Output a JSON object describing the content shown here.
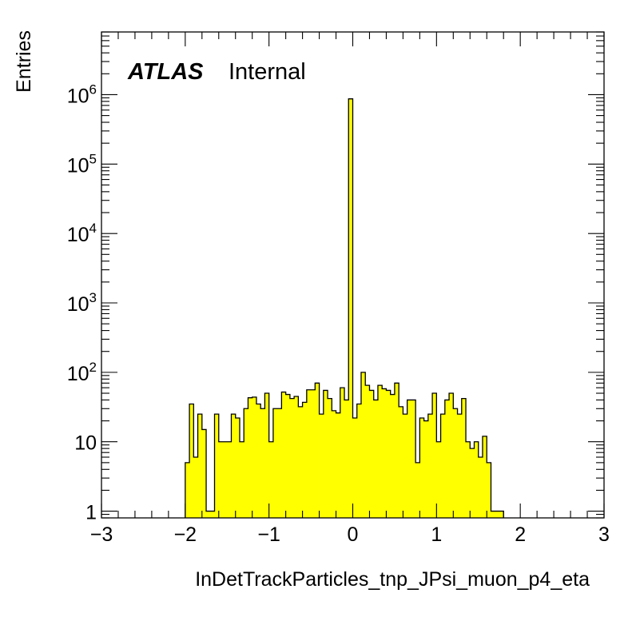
{
  "chart_data": {
    "type": "histogram",
    "xlabel": "InDetTrackParticles_tnp_JPsi_muon_p4_eta",
    "ylabel": "Entries",
    "xlim": [
      -3,
      3
    ],
    "ylim": [
      0.8,
      8000000
    ],
    "yscale": "log",
    "grid": false,
    "fill_color": "#ffff00",
    "line_color": "#000000",
    "bin_width": 0.05,
    "x_ticks": [
      {
        "value": -3,
        "label": "−3"
      },
      {
        "value": -2,
        "label": "−2"
      },
      {
        "value": -1,
        "label": "−1"
      },
      {
        "value": 0,
        "label": "0"
      },
      {
        "value": 1,
        "label": "1"
      },
      {
        "value": 2,
        "label": "2"
      },
      {
        "value": 3,
        "label": "3"
      }
    ],
    "y_ticks": [
      {
        "value": 1,
        "base": "1",
        "exp": ""
      },
      {
        "value": 10,
        "base": "10",
        "exp": ""
      },
      {
        "value": 100,
        "base": "10",
        "exp": "2"
      },
      {
        "value": 1000,
        "base": "10",
        "exp": "3"
      },
      {
        "value": 10000,
        "base": "10",
        "exp": "4"
      },
      {
        "value": 100000,
        "base": "10",
        "exp": "5"
      },
      {
        "value": 1000000,
        "base": "10",
        "exp": "6"
      }
    ],
    "bins": [
      {
        "x": -2.0,
        "y": 5
      },
      {
        "x": -1.95,
        "y": 35
      },
      {
        "x": -1.9,
        "y": 6
      },
      {
        "x": -1.85,
        "y": 25
      },
      {
        "x": -1.8,
        "y": 15
      },
      {
        "x": -1.75,
        "y": 1
      },
      {
        "x": -1.7,
        "y": 1
      },
      {
        "x": -1.65,
        "y": 25
      },
      {
        "x": -1.6,
        "y": 10
      },
      {
        "x": -1.55,
        "y": 10
      },
      {
        "x": -1.5,
        "y": 10
      },
      {
        "x": -1.45,
        "y": 25
      },
      {
        "x": -1.4,
        "y": 22
      },
      {
        "x": -1.35,
        "y": 10
      },
      {
        "x": -1.3,
        "y": 30
      },
      {
        "x": -1.25,
        "y": 43
      },
      {
        "x": -1.2,
        "y": 44
      },
      {
        "x": -1.15,
        "y": 35
      },
      {
        "x": -1.1,
        "y": 30
      },
      {
        "x": -1.05,
        "y": 50
      },
      {
        "x": -1.0,
        "y": 10
      },
      {
        "x": -0.95,
        "y": 30
      },
      {
        "x": -0.9,
        "y": 30
      },
      {
        "x": -0.85,
        "y": 52
      },
      {
        "x": -0.8,
        "y": 48
      },
      {
        "x": -0.75,
        "y": 42
      },
      {
        "x": -0.7,
        "y": 45
      },
      {
        "x": -0.65,
        "y": 32
      },
      {
        "x": -0.6,
        "y": 37
      },
      {
        "x": -0.55,
        "y": 56
      },
      {
        "x": -0.5,
        "y": 56
      },
      {
        "x": -0.45,
        "y": 70
      },
      {
        "x": -0.4,
        "y": 25
      },
      {
        "x": -0.35,
        "y": 55
      },
      {
        "x": -0.3,
        "y": 42
      },
      {
        "x": -0.25,
        "y": 28
      },
      {
        "x": -0.2,
        "y": 26
      },
      {
        "x": -0.15,
        "y": 60
      },
      {
        "x": -0.1,
        "y": 40
      },
      {
        "x": -0.05,
        "y": 870000
      },
      {
        "x": 0.0,
        "y": 22
      },
      {
        "x": 0.05,
        "y": 35
      },
      {
        "x": 0.1,
        "y": 100
      },
      {
        "x": 0.15,
        "y": 65
      },
      {
        "x": 0.2,
        "y": 55
      },
      {
        "x": 0.25,
        "y": 40
      },
      {
        "x": 0.3,
        "y": 65
      },
      {
        "x": 0.35,
        "y": 58
      },
      {
        "x": 0.4,
        "y": 55
      },
      {
        "x": 0.45,
        "y": 48
      },
      {
        "x": 0.5,
        "y": 70
      },
      {
        "x": 0.55,
        "y": 32
      },
      {
        "x": 0.6,
        "y": 25
      },
      {
        "x": 0.65,
        "y": 40
      },
      {
        "x": 0.7,
        "y": 40
      },
      {
        "x": 0.75,
        "y": 5
      },
      {
        "x": 0.8,
        "y": 22
      },
      {
        "x": 0.85,
        "y": 20
      },
      {
        "x": 0.9,
        "y": 25
      },
      {
        "x": 0.95,
        "y": 50
      },
      {
        "x": 1.0,
        "y": 10
      },
      {
        "x": 1.05,
        "y": 25
      },
      {
        "x": 1.1,
        "y": 40
      },
      {
        "x": 1.15,
        "y": 50
      },
      {
        "x": 1.2,
        "y": 30
      },
      {
        "x": 1.25,
        "y": 25
      },
      {
        "x": 1.3,
        "y": 42
      },
      {
        "x": 1.35,
        "y": 10
      },
      {
        "x": 1.4,
        "y": 8
      },
      {
        "x": 1.45,
        "y": 10
      },
      {
        "x": 1.5,
        "y": 6
      },
      {
        "x": 1.55,
        "y": 12
      },
      {
        "x": 1.6,
        "y": 5
      },
      {
        "x": 1.65,
        "y": 1
      },
      {
        "x": 1.7,
        "y": 1
      },
      {
        "x": 1.75,
        "y": 1
      }
    ]
  },
  "annotation": {
    "brand": "ATLAS",
    "status": "Internal"
  }
}
